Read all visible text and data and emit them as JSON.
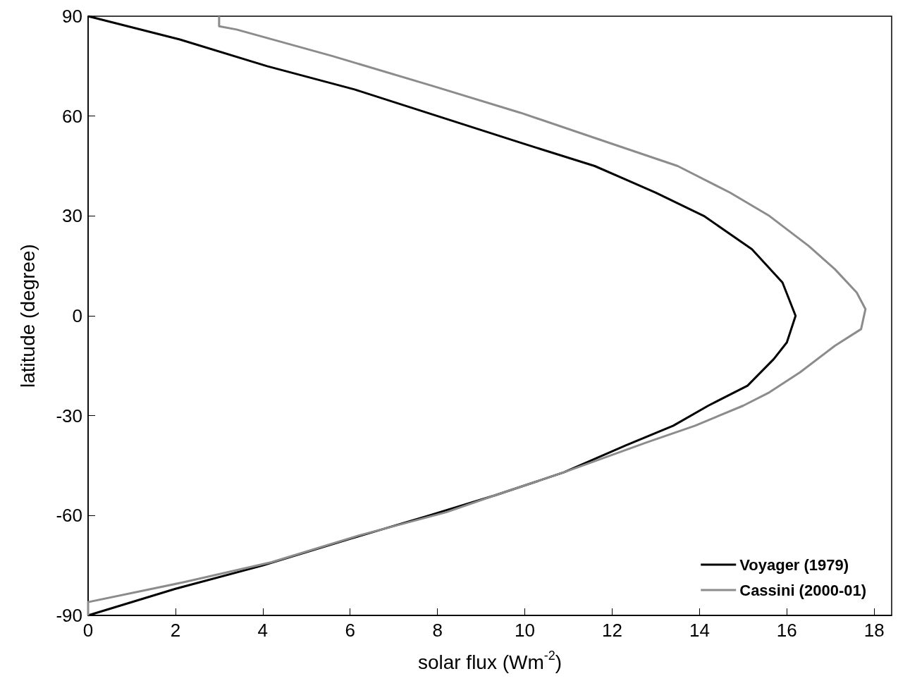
{
  "chart_data": {
    "type": "line",
    "xlabel": "solar flux (Wm$^{-2}$)",
    "ylabel": "latitude (degree)",
    "xlim": [
      0,
      18.4
    ],
    "xticks": [
      0,
      2,
      4,
      6,
      8,
      10,
      12,
      14,
      16,
      18
    ],
    "ylim": [
      -90,
      90
    ],
    "yticks": [
      -90,
      -60,
      -30,
      0,
      30,
      60,
      90
    ],
    "grid": false,
    "legend": "bottom right",
    "series": [
      {
        "name": "Voyager (1979)",
        "color": "#000000",
        "x": [
          0,
          2.1,
          4.1,
          6.1,
          8.0,
          9.9,
          11.6,
          13.0,
          14.1,
          15.2,
          15.9,
          16.2,
          16.0,
          15.7,
          15.1,
          14.2,
          13.4,
          12.3,
          10.9,
          9.3,
          7.8,
          6.0,
          4.0,
          2.0,
          0
        ],
        "values": [
          90,
          83,
          75,
          68,
          60,
          52,
          45,
          37,
          30,
          20,
          10,
          0,
          -8,
          -13,
          -21,
          -27,
          -33,
          -39,
          -47,
          -54,
          -60,
          -67,
          -75,
          -82,
          -90
        ]
      },
      {
        "name": "Cassini (2000-01)",
        "color": "#8c8c8c",
        "x": [
          3,
          3,
          3.4,
          5.6,
          7.9,
          9.9,
          11.7,
          13.5,
          14.7,
          15.6,
          16.5,
          17.1,
          17.6,
          17.8,
          17.7,
          17.1,
          16.3,
          15.6,
          15.0,
          13.9,
          12.8,
          10.9,
          9.3,
          8.2,
          6.2,
          4.2,
          2.2,
          0,
          0
        ],
        "values": [
          90,
          87,
          86,
          78,
          69,
          61,
          53,
          45,
          37,
          30,
          21,
          14,
          7,
          2,
          -4,
          -9,
          -17,
          -23,
          -27,
          -33,
          -38,
          -47,
          -54,
          -59,
          -66,
          -74,
          -80,
          -86,
          -90
        ]
      }
    ]
  }
}
